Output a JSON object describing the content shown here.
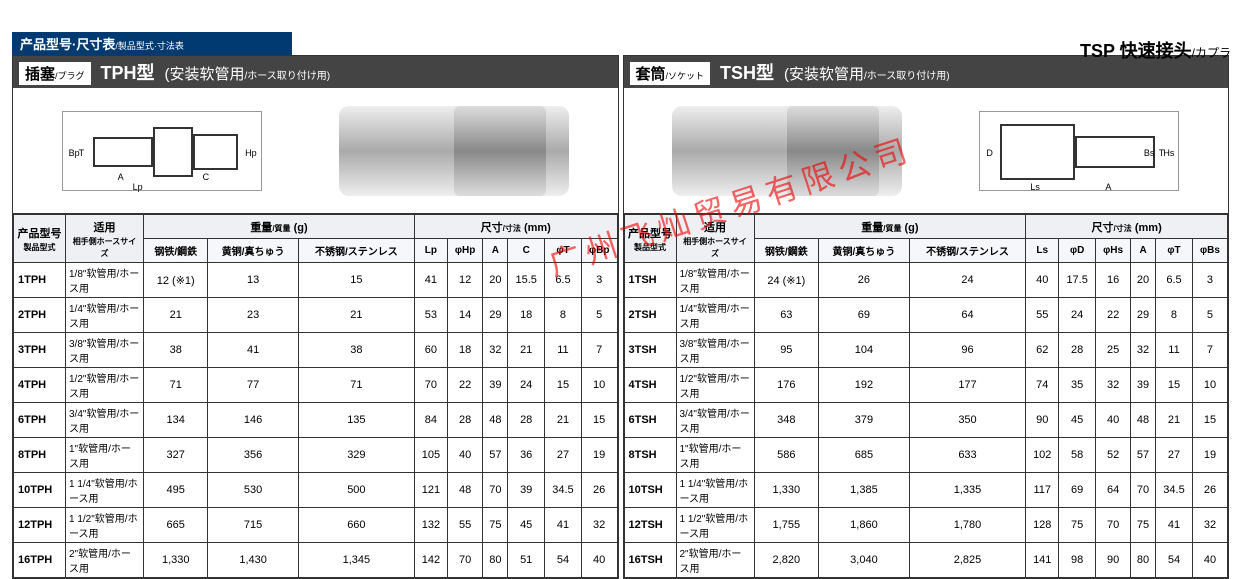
{
  "page": {
    "title_main": "TSP",
    "title_label": "快速接头",
    "title_sub": "/カプラ"
  },
  "section_header": {
    "cn": "产品型号·尺寸表",
    "jp": "/製品型式·寸法表"
  },
  "left": {
    "tag_cn": "插塞",
    "tag_jp": "/プラグ",
    "model": "TPH型",
    "usage_cn": "(安装软管用",
    "usage_jp": "/ホース取り付け用)",
    "dim_labels": [
      "Bp",
      "T",
      "A",
      "Lp",
      "C",
      "Hp"
    ],
    "headers": {
      "model_cn": "产品型号",
      "model_jp": "製品型式",
      "apply_cn": "适用",
      "apply_jp": "相手側ホースサイズ",
      "weight_label": "重量",
      "weight_sub": "/質量",
      "weight_unit": "(g)",
      "w1": "钢铁/鋼鉄",
      "w2": "黄铜/真ちゅう",
      "w3": "不锈钢/ステンレス",
      "dim_label": "尺寸",
      "dim_sub": "/寸法",
      "dim_unit": "(mm)",
      "d": [
        "Lp",
        "φHp",
        "A",
        "C",
        "φT",
        "φBp"
      ]
    },
    "rows": [
      {
        "m": "1TPH",
        "a": "1/8\"软管用/ホース用",
        "w": [
          "12 (※1)",
          "13",
          "15"
        ],
        "d": [
          "41",
          "12",
          "20",
          "15.5",
          "6.5",
          "3"
        ]
      },
      {
        "m": "2TPH",
        "a": "1/4\"软管用/ホース用",
        "w": [
          "21",
          "23",
          "21"
        ],
        "d": [
          "53",
          "14",
          "29",
          "18",
          "8",
          "5"
        ]
      },
      {
        "m": "3TPH",
        "a": "3/8\"软管用/ホース用",
        "w": [
          "38",
          "41",
          "38"
        ],
        "d": [
          "60",
          "18",
          "32",
          "21",
          "11",
          "7"
        ]
      },
      {
        "m": "4TPH",
        "a": "1/2\"软管用/ホース用",
        "w": [
          "71",
          "77",
          "71"
        ],
        "d": [
          "70",
          "22",
          "39",
          "24",
          "15",
          "10"
        ]
      },
      {
        "m": "6TPH",
        "a": "3/4\"软管用/ホース用",
        "w": [
          "134",
          "146",
          "135"
        ],
        "d": [
          "84",
          "28",
          "48",
          "28",
          "21",
          "15"
        ]
      },
      {
        "m": "8TPH",
        "a": "1\"软管用/ホース用",
        "w": [
          "327",
          "356",
          "329"
        ],
        "d": [
          "105",
          "40",
          "57",
          "36",
          "27",
          "19"
        ]
      },
      {
        "m": "10TPH",
        "a": "1 1/4\"软管用/ホース用",
        "w": [
          "495",
          "530",
          "500"
        ],
        "d": [
          "121",
          "48",
          "70",
          "39",
          "34.5",
          "26"
        ]
      },
      {
        "m": "12TPH",
        "a": "1 1/2\"软管用/ホース用",
        "w": [
          "665",
          "715",
          "660"
        ],
        "d": [
          "132",
          "55",
          "75",
          "45",
          "41",
          "32"
        ]
      },
      {
        "m": "16TPH",
        "a": "2\"软管用/ホース用",
        "w": [
          "1,330",
          "1,430",
          "1,345"
        ],
        "d": [
          "142",
          "70",
          "80",
          "51",
          "54",
          "40"
        ]
      }
    ]
  },
  "right": {
    "tag_cn": "套筒",
    "tag_jp": "/ソケット",
    "model": "TSH型",
    "usage_cn": "(安装软管用",
    "usage_jp": "/ホース取り付け用)",
    "dim_labels": [
      "D",
      "Ls",
      "A",
      "Bs",
      "T",
      "Hs"
    ],
    "headers": {
      "model_cn": "产品型号",
      "model_jp": "製品型式",
      "apply_cn": "适用",
      "apply_jp": "相手側ホースサイズ",
      "weight_label": "重量",
      "weight_sub": "/質量",
      "weight_unit": "(g)",
      "w1": "钢铁/鋼鉄",
      "w2": "黄铜/真ちゅう",
      "w3": "不锈钢/ステンレス",
      "dim_label": "尺寸",
      "dim_sub": "/寸法",
      "dim_unit": "(mm)",
      "d": [
        "Ls",
        "φD",
        "φHs",
        "A",
        "φT",
        "φBs"
      ]
    },
    "rows": [
      {
        "m": "1TSH",
        "a": "1/8\"软管用/ホース用",
        "w": [
          "24 (※1)",
          "26",
          "24"
        ],
        "d": [
          "40",
          "17.5",
          "16",
          "20",
          "6.5",
          "3"
        ]
      },
      {
        "m": "2TSH",
        "a": "1/4\"软管用/ホース用",
        "w": [
          "63",
          "69",
          "64"
        ],
        "d": [
          "55",
          "24",
          "22",
          "29",
          "8",
          "5"
        ]
      },
      {
        "m": "3TSH",
        "a": "3/8\"软管用/ホース用",
        "w": [
          "95",
          "104",
          "96"
        ],
        "d": [
          "62",
          "28",
          "25",
          "32",
          "11",
          "7"
        ]
      },
      {
        "m": "4TSH",
        "a": "1/2\"软管用/ホース用",
        "w": [
          "176",
          "192",
          "177"
        ],
        "d": [
          "74",
          "35",
          "32",
          "39",
          "15",
          "10"
        ]
      },
      {
        "m": "6TSH",
        "a": "3/4\"软管用/ホース用",
        "w": [
          "348",
          "379",
          "350"
        ],
        "d": [
          "90",
          "45",
          "40",
          "48",
          "21",
          "15"
        ]
      },
      {
        "m": "8TSH",
        "a": "1\"软管用/ホース用",
        "w": [
          "586",
          "685",
          "633"
        ],
        "d": [
          "102",
          "58",
          "52",
          "57",
          "27",
          "19"
        ]
      },
      {
        "m": "10TSH",
        "a": "1 1/4\"软管用/ホース用",
        "w": [
          "1,330",
          "1,385",
          "1,335"
        ],
        "d": [
          "117",
          "69",
          "64",
          "70",
          "34.5",
          "26"
        ]
      },
      {
        "m": "12TSH",
        "a": "1 1/2\"软管用/ホース用",
        "w": [
          "1,755",
          "1,860",
          "1,780"
        ],
        "d": [
          "128",
          "75",
          "70",
          "75",
          "41",
          "32"
        ]
      },
      {
        "m": "16TSH",
        "a": "2\"软管用/ホース用",
        "w": [
          "2,820",
          "3,040",
          "2,825"
        ],
        "d": [
          "141",
          "98",
          "90",
          "80",
          "54",
          "40"
        ]
      }
    ]
  },
  "watermark": "广州飞灿贸易有限公司",
  "colors": {
    "header_bg": "#003a70",
    "panel_head_bg": "#444",
    "th_bg": "#eef0f4",
    "border": "#333",
    "watermark": "#e00"
  }
}
